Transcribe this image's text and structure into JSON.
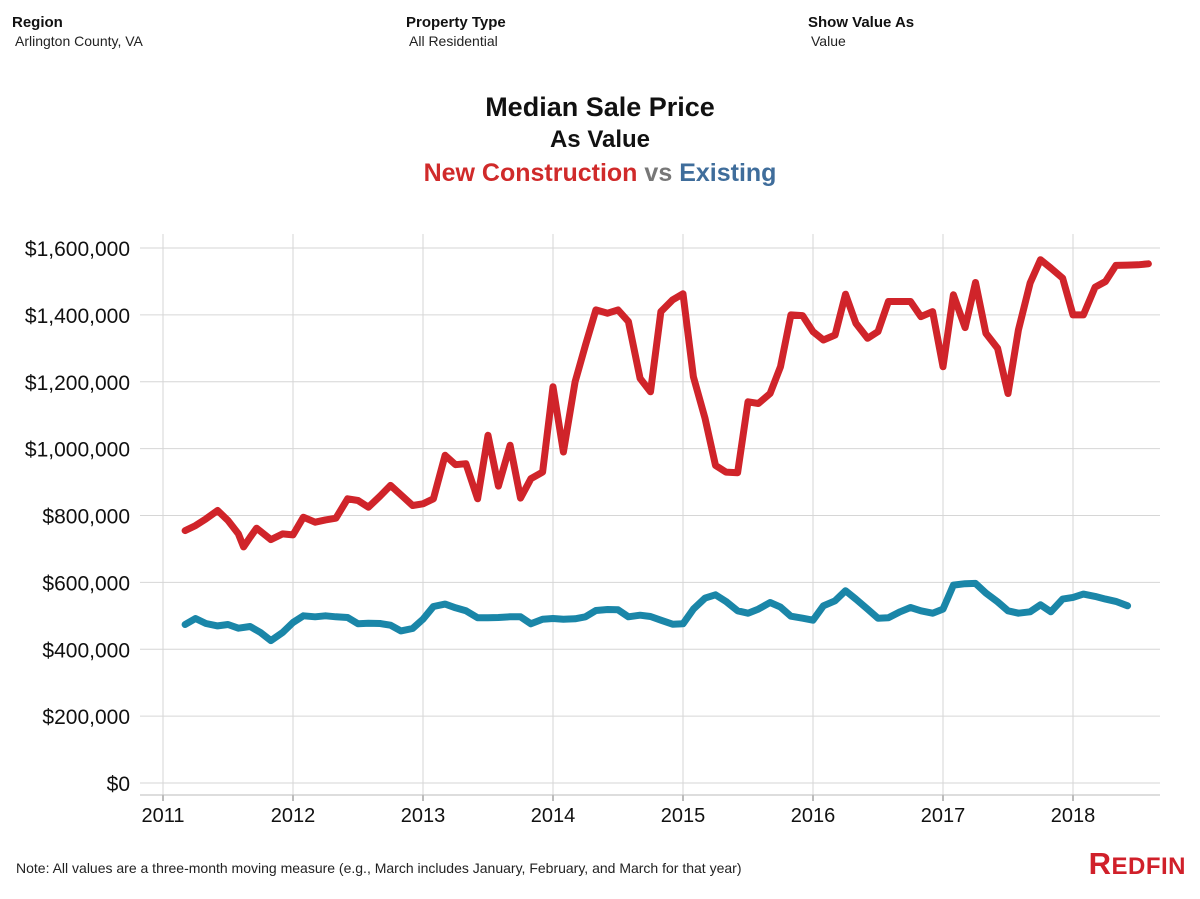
{
  "filters": {
    "region": {
      "label": "Region",
      "value": "Arlington County, VA"
    },
    "property_type": {
      "label": "Property Type",
      "value": "All Residential"
    },
    "show_value_as": {
      "label": "Show Value As",
      "value": "Value"
    }
  },
  "titles": {
    "main": "Median Sale Price",
    "sub": "As Value",
    "series_new": "New Construction",
    "vs": "vs",
    "series_existing": "Existing"
  },
  "note": "Note: All values are a three-month moving measure (e.g., March includes January, February, and March for that year)",
  "logo": {
    "text": "Redfin"
  },
  "colors": {
    "new_construction": "#d0242a",
    "existing": "#1a86a8",
    "grid": "#d6d6d6"
  },
  "chart_data": {
    "type": "line",
    "title": "Median Sale Price",
    "subtitle": "As Value",
    "x_unit": "year",
    "xlim": [
      2010.9,
      2018.8
    ],
    "ylim": [
      0,
      1650000
    ],
    "y_ticks": [
      0,
      200000,
      400000,
      600000,
      800000,
      1000000,
      1200000,
      1400000,
      1600000
    ],
    "y_tick_labels": [
      "$0",
      "$200,000",
      "$400,000",
      "$600,000",
      "$800,000",
      "$1,000,000",
      "$1,200,000",
      "$1,400,000",
      "$1,600,000"
    ],
    "x_ticks": [
      2011,
      2012,
      2013,
      2014,
      2015,
      2016,
      2017,
      2018
    ],
    "x_tick_labels": [
      "2011",
      "2012",
      "2013",
      "2014",
      "2015",
      "2016",
      "2017",
      "2018"
    ],
    "grid": true,
    "series": [
      {
        "name": "New Construction",
        "color": "#d0242a",
        "points": [
          [
            2011.17,
            755000
          ],
          [
            2011.25,
            770000
          ],
          [
            2011.33,
            790000
          ],
          [
            2011.42,
            815000
          ],
          [
            2011.5,
            785000
          ],
          [
            2011.58,
            745000
          ],
          [
            2011.62,
            706000
          ],
          [
            2011.67,
            735000
          ],
          [
            2011.72,
            762000
          ],
          [
            2011.83,
            728000
          ],
          [
            2011.92,
            745000
          ],
          [
            2012.0,
            742000
          ],
          [
            2012.08,
            795000
          ],
          [
            2012.17,
            780000
          ],
          [
            2012.25,
            787000
          ],
          [
            2012.33,
            792000
          ],
          [
            2012.42,
            850000
          ],
          [
            2012.5,
            845000
          ],
          [
            2012.58,
            825000
          ],
          [
            2012.67,
            858000
          ],
          [
            2012.75,
            890000
          ],
          [
            2012.83,
            862000
          ],
          [
            2012.92,
            830000
          ],
          [
            2013.0,
            835000
          ],
          [
            2013.08,
            850000
          ],
          [
            2013.17,
            980000
          ],
          [
            2013.25,
            952000
          ],
          [
            2013.33,
            955000
          ],
          [
            2013.42,
            850000
          ],
          [
            2013.5,
            1040000
          ],
          [
            2013.58,
            888000
          ],
          [
            2013.67,
            1010000
          ],
          [
            2013.75,
            852000
          ],
          [
            2013.83,
            910000
          ],
          [
            2013.92,
            930000
          ],
          [
            2014.0,
            1185000
          ],
          [
            2014.08,
            990000
          ],
          [
            2014.17,
            1200000
          ],
          [
            2014.25,
            1310000
          ],
          [
            2014.33,
            1415000
          ],
          [
            2014.42,
            1405000
          ],
          [
            2014.5,
            1415000
          ],
          [
            2014.58,
            1380000
          ],
          [
            2014.67,
            1210000
          ],
          [
            2014.75,
            1170000
          ],
          [
            2014.83,
            1410000
          ],
          [
            2014.92,
            1445000
          ],
          [
            2015.0,
            1463000
          ],
          [
            2015.08,
            1215000
          ],
          [
            2015.17,
            1090000
          ],
          [
            2015.25,
            950000
          ],
          [
            2015.33,
            930000
          ],
          [
            2015.42,
            928000
          ],
          [
            2015.5,
            1140000
          ],
          [
            2015.58,
            1135000
          ],
          [
            2015.67,
            1165000
          ],
          [
            2015.75,
            1245000
          ],
          [
            2015.83,
            1400000
          ],
          [
            2015.92,
            1398000
          ],
          [
            2016.0,
            1350000
          ],
          [
            2016.08,
            1325000
          ],
          [
            2016.17,
            1340000
          ],
          [
            2016.25,
            1462000
          ],
          [
            2016.33,
            1375000
          ],
          [
            2016.42,
            1330000
          ],
          [
            2016.5,
            1350000
          ],
          [
            2016.58,
            1440000
          ],
          [
            2016.67,
            1440000
          ],
          [
            2016.75,
            1440000
          ],
          [
            2016.83,
            1395000
          ],
          [
            2016.92,
            1410000
          ],
          [
            2017.0,
            1245000
          ],
          [
            2017.08,
            1460000
          ],
          [
            2017.17,
            1362000
          ],
          [
            2017.25,
            1497000
          ],
          [
            2017.33,
            1345000
          ],
          [
            2017.42,
            1300000
          ],
          [
            2017.5,
            1165000
          ],
          [
            2017.58,
            1355000
          ],
          [
            2017.67,
            1495000
          ],
          [
            2017.75,
            1565000
          ],
          [
            2017.83,
            1540000
          ],
          [
            2017.92,
            1510000
          ],
          [
            2018.0,
            1400000
          ],
          [
            2018.08,
            1400000
          ],
          [
            2018.17,
            1483000
          ],
          [
            2018.25,
            1500000
          ],
          [
            2018.33,
            1548000
          ],
          [
            2018.42,
            1549000
          ],
          [
            2018.5,
            1550000
          ],
          [
            2018.58,
            1553000
          ]
        ]
      },
      {
        "name": "Existing",
        "color": "#1a86a8",
        "points": [
          [
            2011.17,
            474000
          ],
          [
            2011.25,
            492000
          ],
          [
            2011.33,
            477000
          ],
          [
            2011.42,
            470000
          ],
          [
            2011.5,
            474000
          ],
          [
            2011.58,
            463000
          ],
          [
            2011.67,
            468000
          ],
          [
            2011.75,
            450000
          ],
          [
            2011.83,
            426000
          ],
          [
            2011.92,
            450000
          ],
          [
            2012.0,
            480000
          ],
          [
            2012.08,
            500000
          ],
          [
            2012.17,
            497000
          ],
          [
            2012.25,
            500000
          ],
          [
            2012.33,
            497000
          ],
          [
            2012.42,
            495000
          ],
          [
            2012.5,
            476000
          ],
          [
            2012.58,
            478000
          ],
          [
            2012.67,
            477000
          ],
          [
            2012.75,
            472000
          ],
          [
            2012.83,
            455000
          ],
          [
            2012.92,
            462000
          ],
          [
            2013.0,
            490000
          ],
          [
            2013.08,
            528000
          ],
          [
            2013.17,
            535000
          ],
          [
            2013.25,
            524000
          ],
          [
            2013.33,
            515000
          ],
          [
            2013.42,
            494000
          ],
          [
            2013.5,
            494000
          ],
          [
            2013.58,
            495000
          ],
          [
            2013.67,
            497000
          ],
          [
            2013.75,
            497000
          ],
          [
            2013.83,
            476000
          ],
          [
            2013.92,
            490000
          ],
          [
            2014.0,
            492000
          ],
          [
            2014.08,
            490000
          ],
          [
            2014.17,
            491000
          ],
          [
            2014.25,
            497000
          ],
          [
            2014.33,
            516000
          ],
          [
            2014.42,
            519000
          ],
          [
            2014.5,
            518000
          ],
          [
            2014.58,
            497000
          ],
          [
            2014.67,
            502000
          ],
          [
            2014.75,
            498000
          ],
          [
            2014.83,
            487000
          ],
          [
            2014.92,
            475000
          ],
          [
            2015.0,
            476000
          ],
          [
            2015.08,
            520000
          ],
          [
            2015.17,
            553000
          ],
          [
            2015.25,
            563000
          ],
          [
            2015.33,
            543000
          ],
          [
            2015.42,
            515000
          ],
          [
            2015.5,
            508000
          ],
          [
            2015.58,
            520000
          ],
          [
            2015.67,
            540000
          ],
          [
            2015.75,
            526000
          ],
          [
            2015.83,
            499000
          ],
          [
            2015.92,
            493000
          ],
          [
            2016.0,
            487000
          ],
          [
            2016.08,
            530000
          ],
          [
            2016.17,
            545000
          ],
          [
            2016.25,
            575000
          ],
          [
            2016.33,
            550000
          ],
          [
            2016.42,
            520000
          ],
          [
            2016.5,
            493000
          ],
          [
            2016.58,
            494000
          ],
          [
            2016.67,
            512000
          ],
          [
            2016.75,
            525000
          ],
          [
            2016.83,
            515000
          ],
          [
            2016.92,
            508000
          ],
          [
            2017.0,
            520000
          ],
          [
            2017.08,
            592000
          ],
          [
            2017.17,
            596000
          ],
          [
            2017.25,
            597000
          ],
          [
            2017.33,
            568000
          ],
          [
            2017.42,
            542000
          ],
          [
            2017.5,
            515000
          ],
          [
            2017.58,
            508000
          ],
          [
            2017.67,
            512000
          ],
          [
            2017.75,
            533000
          ],
          [
            2017.83,
            512000
          ],
          [
            2017.92,
            550000
          ],
          [
            2018.0,
            555000
          ],
          [
            2018.08,
            565000
          ],
          [
            2018.17,
            558000
          ],
          [
            2018.25,
            550000
          ],
          [
            2018.33,
            543000
          ],
          [
            2018.42,
            530000
          ]
        ]
      }
    ]
  }
}
